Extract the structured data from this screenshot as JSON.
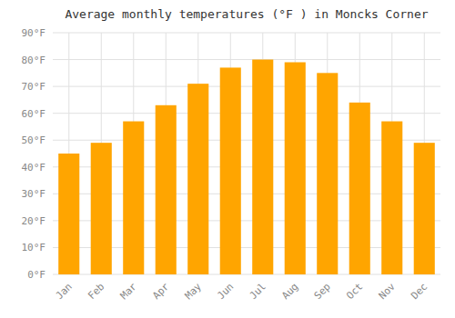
{
  "chart_data": {
    "type": "bar",
    "title": "Average monthly temperatures (°F ) in Moncks Corner",
    "categories": [
      "Jan",
      "Feb",
      "Mar",
      "Apr",
      "May",
      "Jun",
      "Jul",
      "Aug",
      "Sep",
      "Oct",
      "Nov",
      "Dec"
    ],
    "values": [
      45,
      49,
      57,
      63,
      71,
      77,
      80,
      79,
      75,
      64,
      57,
      49
    ],
    "color": "#FFA500",
    "ylim": [
      0,
      90
    ],
    "yticks": [
      {
        "value": 0,
        "label": "0°F"
      },
      {
        "value": 10,
        "label": "10°F"
      },
      {
        "value": 20,
        "label": "20°F"
      },
      {
        "value": 30,
        "label": "30°F"
      },
      {
        "value": 40,
        "label": "40°F"
      },
      {
        "value": 50,
        "label": "50°F"
      },
      {
        "value": 60,
        "label": "60°F"
      },
      {
        "value": 70,
        "label": "70°F"
      },
      {
        "value": 80,
        "label": "80°F"
      },
      {
        "value": 90,
        "label": "90°F"
      }
    ],
    "grid": true
  }
}
